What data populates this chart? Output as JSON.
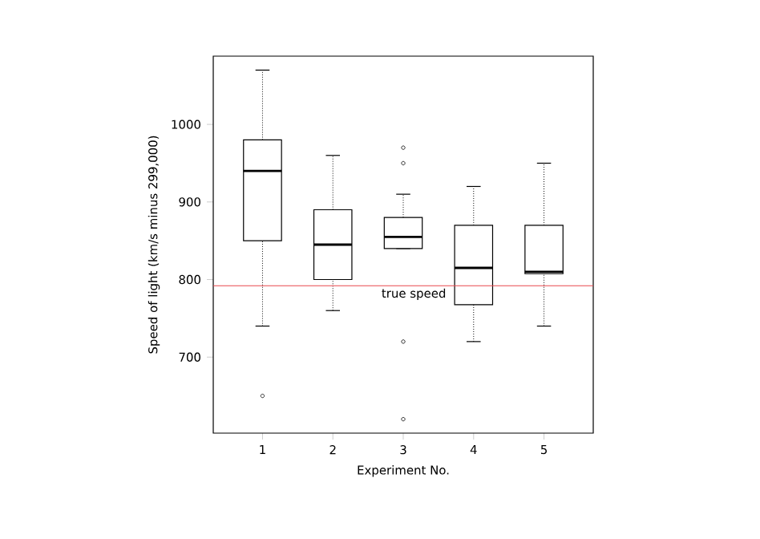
{
  "chart_data": {
    "type": "box",
    "xlabel": "Experiment No.",
    "ylabel": "Speed of light (km/s minus 299,000)",
    "categories": [
      "1",
      "2",
      "3",
      "4",
      "5"
    ],
    "boxes": [
      {
        "low": 740,
        "q1": 850,
        "median": 940,
        "q3": 980,
        "high": 1070,
        "outliers": [
          650
        ]
      },
      {
        "low": 760,
        "q1": 800,
        "median": 845,
        "q3": 890,
        "high": 960
      },
      {
        "low": 840,
        "q1": 840,
        "median": 855,
        "q3": 880,
        "high": 910,
        "outliers": [
          620,
          720,
          950,
          970
        ]
      },
      {
        "low": 720,
        "q1": 767.5,
        "median": 815,
        "q3": 870,
        "high": 920
      },
      {
        "low": 740,
        "q1": 807.5,
        "median": 810,
        "q3": 870,
        "high": 950
      }
    ],
    "ylim": [
      602,
      1088
    ],
    "yticks": [
      700,
      800,
      900,
      1000
    ],
    "ref_lines": [
      {
        "axis": "y",
        "value": 792,
        "label": "true speed",
        "color": "#e8474d"
      }
    ]
  }
}
